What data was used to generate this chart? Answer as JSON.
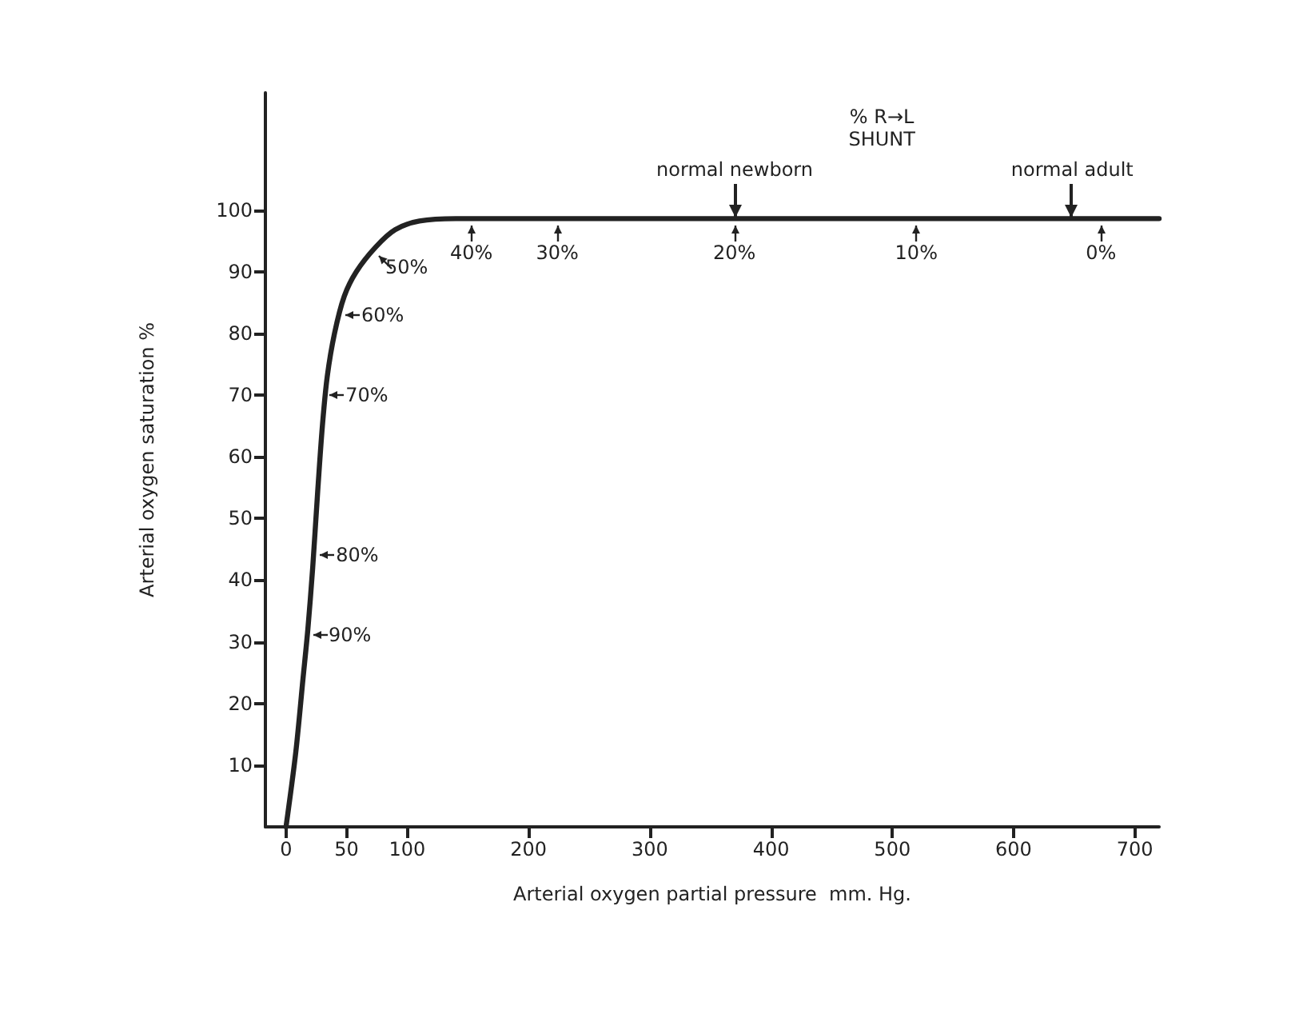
{
  "chart_data": {
    "type": "line",
    "xlabel": "Arterial oxygen partial pressure  mm. Hg.",
    "ylabel": "Arterial oxygen saturation %",
    "x": [
      0,
      8,
      14,
      18,
      22,
      26,
      30,
      34,
      40,
      48,
      58,
      74,
      90,
      110,
      140,
      720
    ],
    "series": [
      {
        "color": "#222222",
        "values": [
          0,
          12,
          24,
          32,
          42,
          54,
          65,
          73,
          80,
          86,
          90,
          94,
          96.8,
          98.2,
          98.6,
          98.6
        ]
      }
    ],
    "xlim": [
      -17,
      720
    ],
    "xticks": [
      0,
      50,
      100,
      200,
      300,
      400,
      500,
      600,
      700
    ],
    "ylim": [
      0,
      119
    ],
    "yticks": [
      10,
      20,
      30,
      40,
      50,
      60,
      70,
      80,
      90,
      100
    ],
    "marker": "none",
    "line_style": "solid",
    "annotations": [
      {
        "text": "90%",
        "x": 18,
        "y": 31
      },
      {
        "text": "80%",
        "x": 24,
        "y": 44
      },
      {
        "text": "70%",
        "x": 32,
        "y": 70
      },
      {
        "text": "60%",
        "x": 45,
        "y": 83
      },
      {
        "text": "50%",
        "x": 74,
        "y": 93
      },
      {
        "text": "40%",
        "x": 153,
        "y": 98.6
      },
      {
        "text": "30%",
        "x": 224,
        "y": 98.6
      },
      {
        "text": "20%",
        "x": 370,
        "y": 98.6
      },
      {
        "text": "10%",
        "x": 520,
        "y": 98.6
      },
      {
        "text": "0%",
        "x": 672,
        "y": 98.6
      },
      {
        "text": "normal newborn",
        "x": 370,
        "y": 98.6
      },
      {
        "text": "normal adult",
        "x": 648,
        "y": 98.6
      },
      "% R→L\nSHUNT"
    ]
  }
}
